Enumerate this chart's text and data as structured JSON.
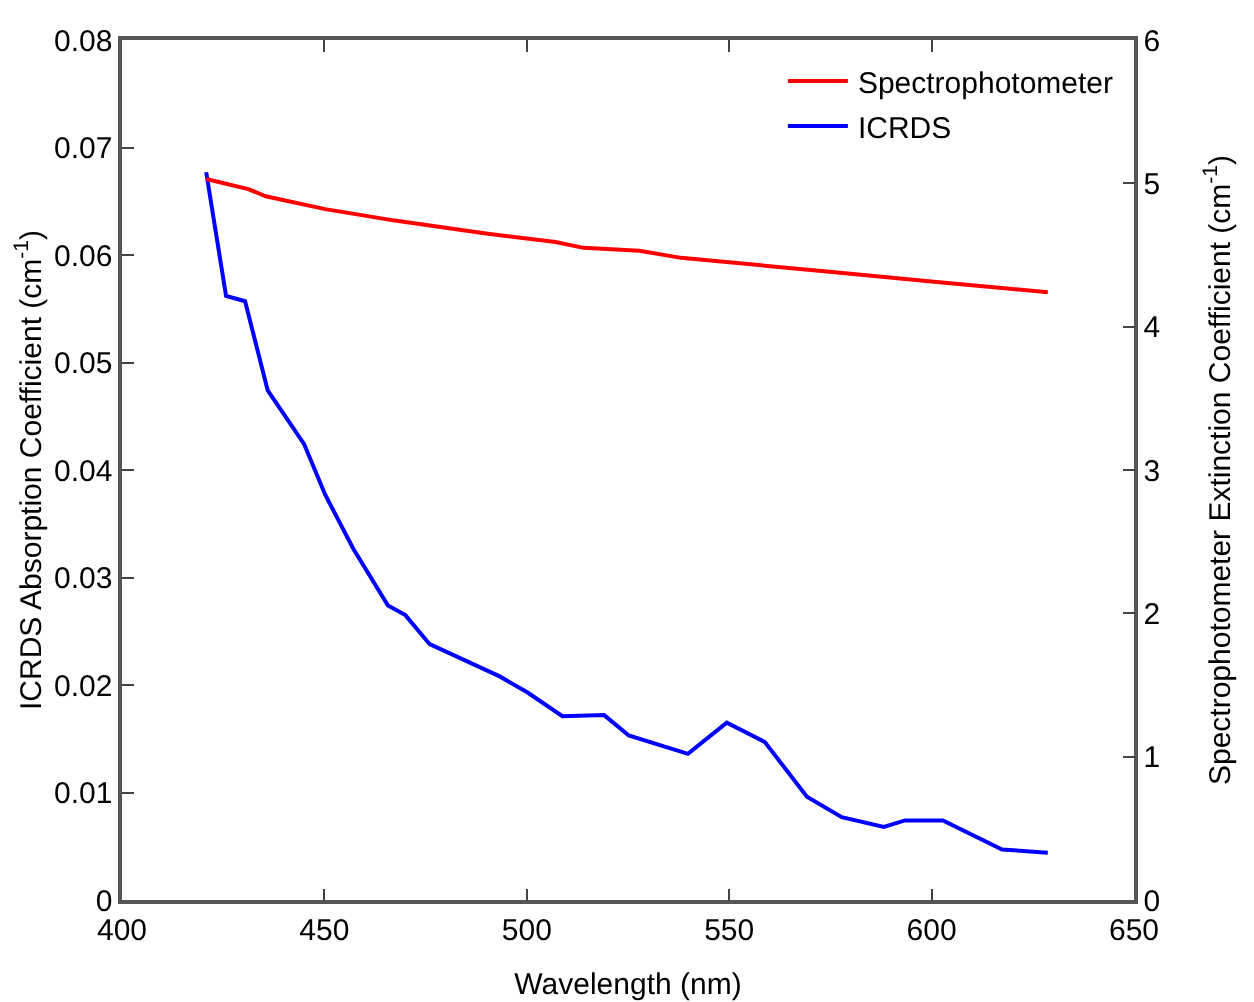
{
  "chart_data": {
    "type": "line",
    "xlabel": "Wavelength (nm)",
    "ylabel": "ICRDS Absorption Coefficient (cm$^{-1}$)",
    "y2label": "Spectrophotometer Extinction Coefficient (cm$^{-1}$)",
    "series": [
      {
        "name": "Spectrophotometer",
        "color": "#ff0000",
        "axis": "y2",
        "x": [
          420.8,
          431.2,
          435.5,
          450.2,
          467.4,
          489.9,
          507.1,
          514,
          527.8,
          538.1,
          576.1,
          601.9,
          628.7
        ],
        "values": [
          5.03,
          4.96,
          4.91,
          4.82,
          4.74,
          4.65,
          4.59,
          4.55,
          4.53,
          4.48,
          4.38,
          4.31,
          4.24
        ]
      },
      {
        "name": "ICRDS",
        "color": "#0000ff",
        "x": [
          420.8,
          425.7,
          430.4,
          436,
          445,
          450.2,
          457.1,
          465.7,
          470,
          476,
          493.3,
          500.2,
          508.8,
          519.1,
          525.2,
          539.8,
          549.4,
          558.8,
          569.2,
          577.8,
          588.2,
          593.4,
          602.8,
          617.4,
          628.7
        ],
        "values": [
          0.0677,
          0.0562,
          0.0557,
          0.0474,
          0.0424,
          0.0377,
          0.0327,
          0.0274,
          0.0265,
          0.0238,
          0.0208,
          0.0193,
          0.0171,
          0.0172,
          0.0153,
          0.0136,
          0.0165,
          0.0147,
          0.0096,
          0.0077,
          0.0068,
          0.0074,
          0.0074,
          0.0047,
          0.0044
        ]
      }
    ],
    "xlim": [
      400,
      650
    ],
    "xticks": [
      400,
      450,
      500,
      550,
      600,
      650
    ],
    "ylim": [
      0,
      0.08
    ],
    "yticks": [
      0,
      0.01,
      0.02,
      0.03,
      0.04,
      0.05,
      0.06,
      0.07,
      0.08
    ],
    "y2lim": [
      0,
      6
    ],
    "y2ticks": [
      0,
      1,
      2,
      3,
      4,
      5,
      6
    ],
    "grid": false,
    "legend": "top right",
    "marker": "none",
    "line_style": "solid"
  }
}
